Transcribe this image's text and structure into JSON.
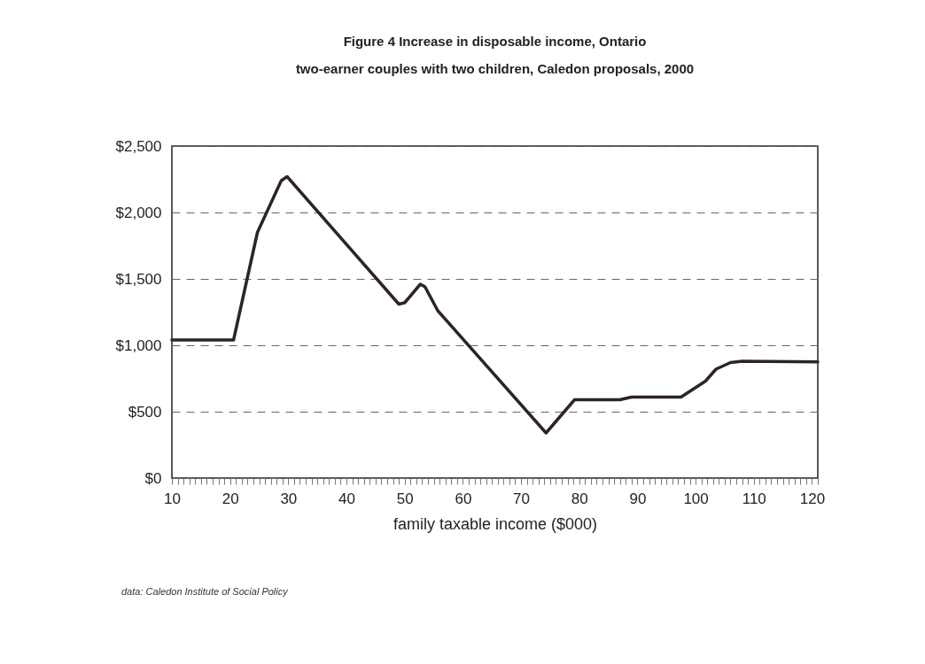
{
  "chart_data": {
    "type": "line",
    "title": "Figure 4   Increase in disposable income, Ontario",
    "subtitle": "two-earner couples with two children, Caledon proposals, 2000",
    "xlabel": "family taxable income ($000)",
    "annotations": [
      "data: Caledon Institute of Social Policy"
    ],
    "x": [
      10,
      20.6,
      24.7,
      28.8,
      29.8,
      49,
      50,
      52.7,
      53.5,
      55.7,
      74.3,
      79.2,
      87,
      89,
      97.5,
      101.7,
      103.5,
      106,
      108,
      121
    ],
    "series": [
      {
        "color": "#2e2520",
        "values": [
          1040,
          1040,
          1850,
          2240,
          2270,
          1310,
          1320,
          1460,
          1440,
          1260,
          340,
          590,
          590,
          610,
          610,
          730,
          820,
          870,
          880,
          875
        ]
      }
    ],
    "xlim": [
      10,
      121
    ],
    "ylim": [
      0,
      2500
    ],
    "yticks": [
      {
        "value": 0,
        "label": "$0"
      },
      {
        "value": 500,
        "label": "$500"
      },
      {
        "value": 1000,
        "label": "$1,000"
      },
      {
        "value": 1500,
        "label": "$1,500"
      },
      {
        "value": 2000,
        "label": "$2,000"
      },
      {
        "value": 2500,
        "label": "$2,500"
      }
    ],
    "xticks": [
      10,
      {
        "value": 11,
        "label": null
      },
      {
        "value": 12,
        "label": null
      },
      {
        "value": 13,
        "label": null
      },
      {
        "value": 14,
        "label": null
      },
      {
        "value": 15,
        "label": null
      },
      {
        "value": 16,
        "label": null
      },
      {
        "value": 17,
        "label": null
      },
      {
        "value": 18,
        "label": null
      },
      {
        "value": 19,
        "label": null
      },
      20,
      {
        "value": 21,
        "label": null
      },
      {
        "value": 22,
        "label": null
      },
      {
        "value": 23,
        "label": null
      },
      {
        "value": 24,
        "label": null
      },
      {
        "value": 25,
        "label": null
      },
      {
        "value": 26,
        "label": null
      },
      {
        "value": 27,
        "label": null
      },
      {
        "value": 28,
        "label": null
      },
      {
        "value": 29,
        "label": null
      },
      30,
      {
        "value": 31,
        "label": null
      },
      {
        "value": 32,
        "label": null
      },
      {
        "value": 33,
        "label": null
      },
      {
        "value": 34,
        "label": null
      },
      {
        "value": 35,
        "label": null
      },
      {
        "value": 36,
        "label": null
      },
      {
        "value": 37,
        "label": null
      },
      {
        "value": 38,
        "label": null
      },
      {
        "value": 39,
        "label": null
      },
      40,
      {
        "value": 41,
        "label": null
      },
      {
        "value": 42,
        "label": null
      },
      {
        "value": 43,
        "label": null
      },
      {
        "value": 44,
        "label": null
      },
      {
        "value": 45,
        "label": null
      },
      {
        "value": 46,
        "label": null
      },
      {
        "value": 47,
        "label": null
      },
      {
        "value": 48,
        "label": null
      },
      {
        "value": 49,
        "label": null
      },
      50,
      {
        "value": 51,
        "label": null
      },
      {
        "value": 52,
        "label": null
      },
      {
        "value": 53,
        "label": null
      },
      {
        "value": 54,
        "label": null
      },
      {
        "value": 55,
        "label": null
      },
      {
        "value": 56,
        "label": null
      },
      {
        "value": 57,
        "label": null
      },
      {
        "value": 58,
        "label": null
      },
      {
        "value": 59,
        "label": null
      },
      60,
      {
        "value": 61,
        "label": null
      },
      {
        "value": 62,
        "label": null
      },
      {
        "value": 63,
        "label": null
      },
      {
        "value": 64,
        "label": null
      },
      {
        "value": 65,
        "label": null
      },
      {
        "value": 66,
        "label": null
      },
      {
        "value": 67,
        "label": null
      },
      {
        "value": 68,
        "label": null
      },
      {
        "value": 69,
        "label": null
      },
      70,
      {
        "value": 71,
        "label": null
      },
      {
        "value": 72,
        "label": null
      },
      {
        "value": 73,
        "label": null
      },
      {
        "value": 74,
        "label": null
      },
      {
        "value": 75,
        "label": null
      },
      {
        "value": 76,
        "label": null
      },
      {
        "value": 77,
        "label": null
      },
      {
        "value": 78,
        "label": null
      },
      {
        "value": 79,
        "label": null
      },
      80,
      {
        "value": 81,
        "label": null
      },
      {
        "value": 82,
        "label": null
      },
      {
        "value": 83,
        "label": null
      },
      {
        "value": 84,
        "label": null
      },
      {
        "value": 85,
        "label": null
      },
      {
        "value": 86,
        "label": null
      },
      {
        "value": 87,
        "label": null
      },
      {
        "value": 88,
        "label": null
      },
      {
        "value": 89,
        "label": null
      },
      90,
      {
        "value": 91,
        "label": null
      },
      {
        "value": 92,
        "label": null
      },
      {
        "value": 93,
        "label": null
      },
      {
        "value": 94,
        "label": null
      },
      {
        "value": 95,
        "label": null
      },
      {
        "value": 96,
        "label": null
      },
      {
        "value": 97,
        "label": null
      },
      {
        "value": 98,
        "label": null
      },
      {
        "value": 99,
        "label": null
      },
      100,
      {
        "value": 101,
        "label": null
      },
      {
        "value": 102,
        "label": null
      },
      {
        "value": 103,
        "label": null
      },
      {
        "value": 104,
        "label": null
      },
      {
        "value": 105,
        "label": null
      },
      {
        "value": 106,
        "label": null
      },
      {
        "value": 107,
        "label": null
      },
      {
        "value": 108,
        "label": null
      },
      {
        "value": 109,
        "label": null
      },
      110,
      {
        "value": 111,
        "label": null
      },
      {
        "value": 112,
        "label": null
      },
      {
        "value": 113,
        "label": null
      },
      {
        "value": 114,
        "label": null
      },
      {
        "value": 115,
        "label": null
      },
      {
        "value": 116,
        "label": null
      },
      {
        "value": 117,
        "label": null
      },
      {
        "value": 118,
        "label": null
      },
      {
        "value": 119,
        "label": null
      },
      120,
      {
        "value": 121,
        "label": null
      }
    ],
    "grid": "y",
    "line_style": "solid",
    "marker": "none"
  }
}
